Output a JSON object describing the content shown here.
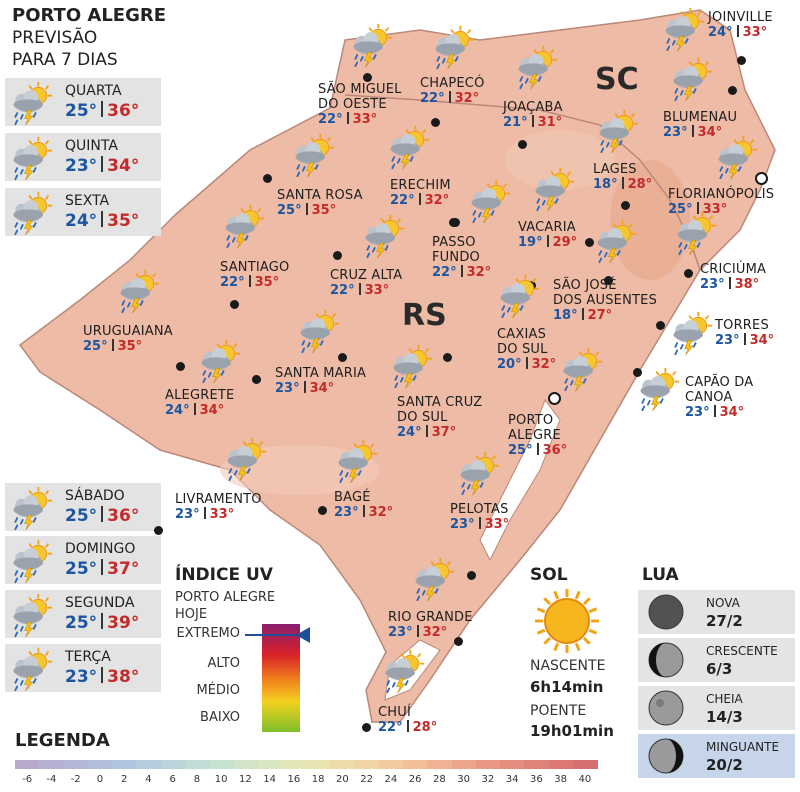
{
  "header": {
    "title": "PORTO ALEGRE",
    "subtitle": [
      "PREVISÃO",
      "PARA 7 DIAS"
    ]
  },
  "days": [
    {
      "day": "QUARTA",
      "min": "25°",
      "max": "36°"
    },
    {
      "day": "QUINTA",
      "min": "23°",
      "max": "34°"
    },
    {
      "day": "SEXTA",
      "min": "24°",
      "max": "35°"
    },
    {
      "day": "SÁBADO",
      "min": "25°",
      "max": "36°"
    },
    {
      "day": "DOMINGO",
      "min": "25°",
      "max": "37°"
    },
    {
      "day": "SEGUNDA",
      "min": "25°",
      "max": "39°"
    },
    {
      "day": "TERÇA",
      "min": "23°",
      "max": "38°"
    }
  ],
  "states": [
    "RS",
    "SC"
  ],
  "cities": [
    {
      "name": [
        "SÃO MIGUEL",
        "DO OESTE"
      ],
      "min": "22°",
      "max": "33°"
    },
    {
      "name": [
        "CHAPECÓ"
      ],
      "min": "22°",
      "max": "32°"
    },
    {
      "name": [
        "JOAÇABA"
      ],
      "min": "21°",
      "max": "31°"
    },
    {
      "name": [
        "JOINVILLE"
      ],
      "min": "24°",
      "max": "33°"
    },
    {
      "name": [
        "BLUMENAU"
      ],
      "min": "23°",
      "max": "34°"
    },
    {
      "name": [
        "LAGES"
      ],
      "min": "18°",
      "max": "28°"
    },
    {
      "name": [
        "FLORIANÓPOLIS"
      ],
      "min": "25°",
      "max": "33°"
    },
    {
      "name": [
        "SANTA ROSA"
      ],
      "min": "25°",
      "max": "35°"
    },
    {
      "name": [
        "ERECHIM"
      ],
      "min": "22°",
      "max": "32°"
    },
    {
      "name": [
        "VACARIA"
      ],
      "min": "19°",
      "max": "29°"
    },
    {
      "name": [
        "PASSO",
        "FUNDO"
      ],
      "min": "22°",
      "max": "32°"
    },
    {
      "name": [
        "SANTIAGO"
      ],
      "min": "22°",
      "max": "35°"
    },
    {
      "name": [
        "CRUZ ALTA"
      ],
      "min": "22°",
      "max": "33°"
    },
    {
      "name": [
        "SÃO JOSÉ",
        "DOS AUSENTES"
      ],
      "min": "18°",
      "max": "27°"
    },
    {
      "name": [
        "CRICIÚMA"
      ],
      "min": "23°",
      "max": "38°"
    },
    {
      "name": [
        "URUGUAIANA"
      ],
      "min": "25°",
      "max": "35°"
    },
    {
      "name": [
        "TORRES"
      ],
      "min": "23°",
      "max": "34°"
    },
    {
      "name": [
        "CAXIAS",
        "DO SUL"
      ],
      "min": "20°",
      "max": "32°"
    },
    {
      "name": [
        "ALEGRETE"
      ],
      "min": "24°",
      "max": "34°"
    },
    {
      "name": [
        "SANTA MARIA"
      ],
      "min": "23°",
      "max": "34°"
    },
    {
      "name": [
        "SANTA CRUZ",
        "DO SUL"
      ],
      "min": "24°",
      "max": "37°"
    },
    {
      "name": [
        "CAPÃO DA",
        "CANOA"
      ],
      "min": "23°",
      "max": "34°"
    },
    {
      "name": [
        "PORTO",
        "ALEGRE"
      ],
      "min": "25°",
      "max": "36°"
    },
    {
      "name": [
        "LIVRAMENTO"
      ],
      "min": "23°",
      "max": "33°"
    },
    {
      "name": [
        "BAGÉ"
      ],
      "min": "23°",
      "max": "32°"
    },
    {
      "name": [
        "PELOTAS"
      ],
      "min": "23°",
      "max": "33°"
    },
    {
      "name": [
        "RIO GRANDE"
      ],
      "min": "23°",
      "max": "32°"
    },
    {
      "name": [
        "CHUÍ"
      ],
      "min": "22°",
      "max": "28°"
    }
  ],
  "uv": {
    "title": "ÍNDICE UV",
    "subtitle": [
      "PORTO ALEGRE",
      "HOJE"
    ],
    "levels": [
      "EXTREMO",
      "ALTO",
      "MÉDIO",
      "BAIXO"
    ]
  },
  "sun": {
    "title": "SOL",
    "sunrise_label": "NASCENTE",
    "sunrise": "6h14min",
    "sunset_label": "POENTE",
    "sunset": "19h01min"
  },
  "moon": {
    "title": "LUA",
    "phases": [
      {
        "name": "NOVA",
        "date": "27/2"
      },
      {
        "name": "CRESCENTE",
        "date": "6/3"
      },
      {
        "name": "CHEIA",
        "date": "14/3"
      },
      {
        "name": "MINGUANTE",
        "date": "20/2"
      }
    ]
  },
  "legend": {
    "title": "LEGENDA",
    "ticks": [
      -6,
      -4,
      -2,
      0,
      2,
      4,
      6,
      8,
      10,
      12,
      14,
      16,
      18,
      20,
      22,
      24,
      26,
      28,
      30,
      32,
      34,
      36,
      38,
      40
    ]
  }
}
